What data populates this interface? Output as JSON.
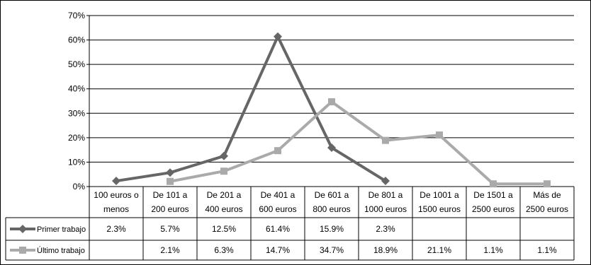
{
  "chart_data": {
    "type": "line",
    "categories": [
      [
        "100 euros o",
        "menos"
      ],
      [
        "De 101 a",
        "200 euros"
      ],
      [
        "De 201 a",
        "400 euros"
      ],
      [
        "De 401 a",
        "600 euros"
      ],
      [
        "De 601 a",
        "800 euros"
      ],
      [
        "De 801 a",
        "1000 euros"
      ],
      [
        "De 1001 a",
        "1500 euros"
      ],
      [
        "De 1501 a",
        "2500 euros"
      ],
      [
        "Más de",
        "2500 euros"
      ]
    ],
    "y_ticks": [
      "0%",
      "10%",
      "20%",
      "30%",
      "40%",
      "50%",
      "60%",
      "70%"
    ],
    "ylim": [
      0,
      70
    ],
    "grid": true,
    "legend_placement": "data-table",
    "series": [
      {
        "name": "Primer trabajo",
        "color": "#666666",
        "marker": "diamond",
        "values": [
          2.3,
          5.7,
          12.5,
          61.4,
          15.9,
          2.3,
          null,
          null,
          null
        ],
        "labels": [
          "2.3%",
          "5.7%",
          "12.5%",
          "61.4%",
          "15.9%",
          "2.3%",
          "",
          "",
          ""
        ]
      },
      {
        "name": "Último trabajo",
        "color": "#aaaaaa",
        "marker": "square",
        "values": [
          null,
          2.1,
          6.3,
          14.7,
          34.7,
          18.9,
          21.1,
          1.1,
          1.1
        ],
        "labels": [
          "",
          "2.1%",
          "6.3%",
          "14.7%",
          "34.7%",
          "18.9%",
          "21.1%",
          "1.1%",
          "1.1%"
        ]
      }
    ]
  }
}
